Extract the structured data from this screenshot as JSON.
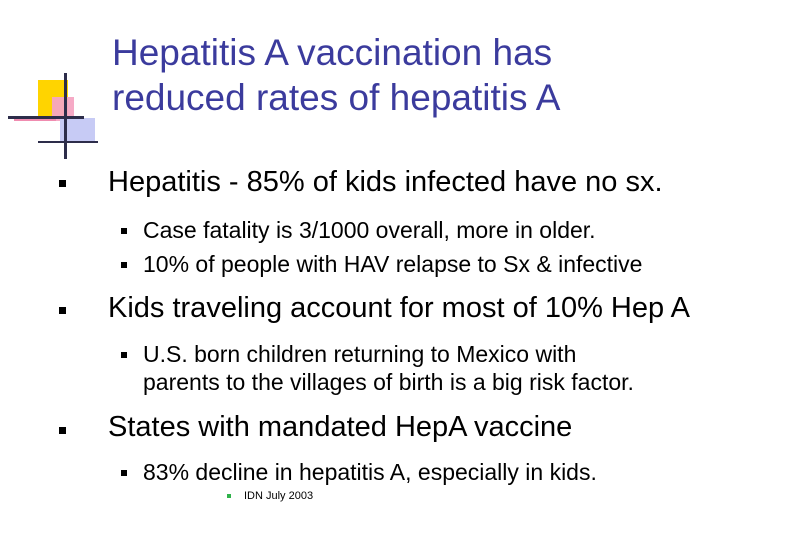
{
  "slide": {
    "title_line1": "Hepatitis A vaccination has",
    "title_line2": "reduced rates of hepatitis A",
    "bullets": [
      {
        "text": "Hepatitis - 85% of kids infected have no sx."
      },
      {
        "text": "Case fatality is 3/1000 overall, more in older."
      },
      {
        "text": "10% of people with HAV relapse to Sx & infective"
      },
      {
        "text": "Kids traveling account for most of 10% Hep A"
      },
      {
        "text_line1": "U.S. born children returning to Mexico with",
        "text_line2": "parents to the villages of birth is a big risk factor."
      },
      {
        "text": "States with mandated HepA vaccine"
      },
      {
        "text": "83% decline in hepatitis A, especially in kids."
      },
      {
        "text": "IDN July 2003"
      }
    ],
    "colors": {
      "title": "#3b3b9d",
      "accent_yellow": "#ffd400",
      "accent_pink": "#f6a5c3",
      "accent_blue": "#c7cbf5"
    }
  }
}
